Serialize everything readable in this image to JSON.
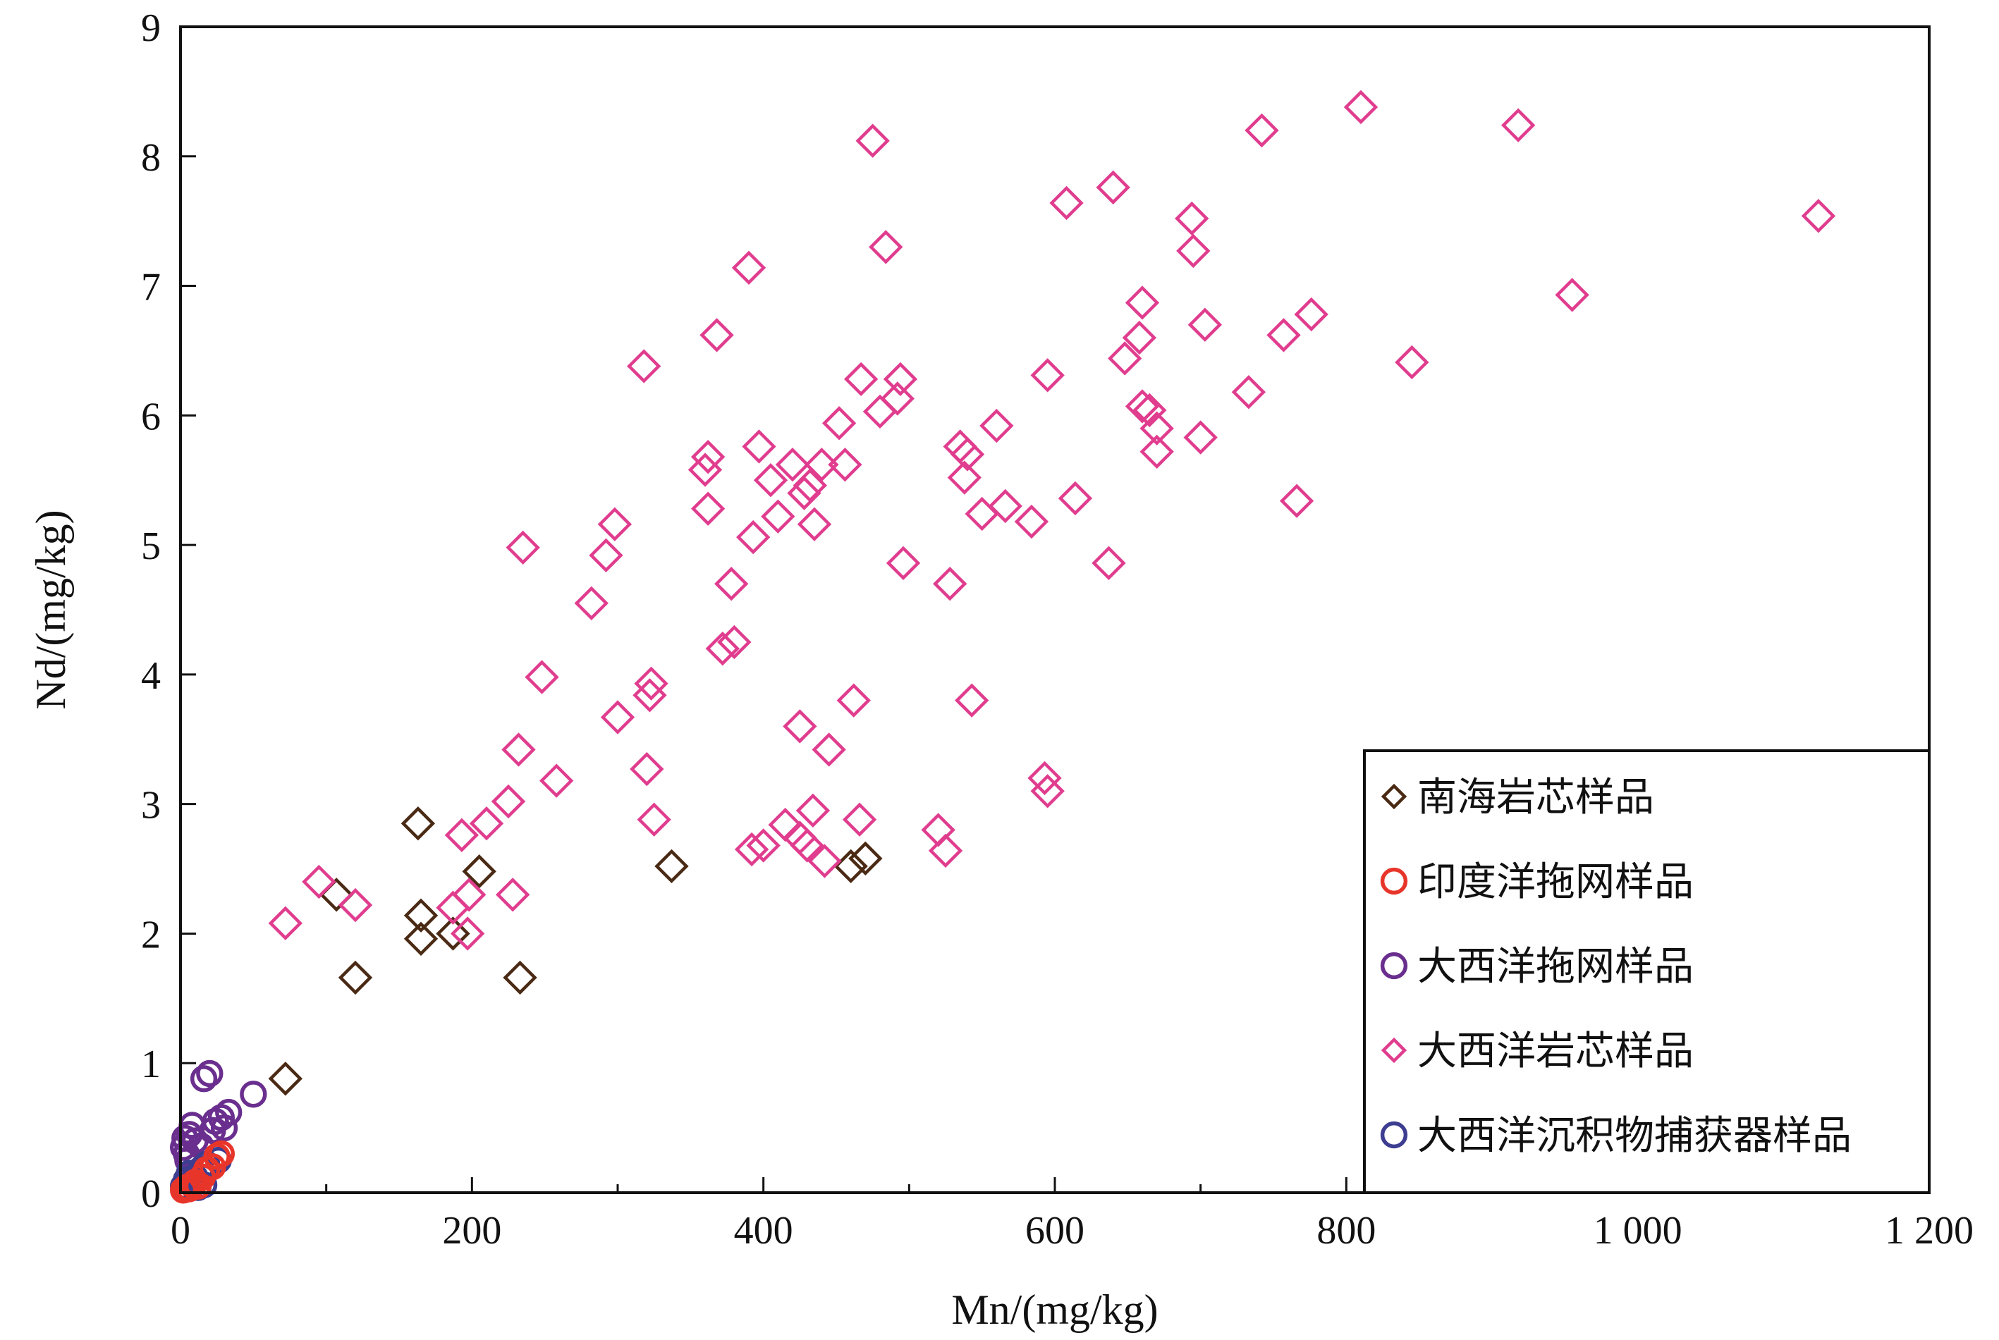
{
  "chart_data": {
    "type": "scatter",
    "title": "",
    "xlabel": "Mn/(mg/kg)",
    "ylabel": "Nd/(mg/kg)",
    "xlim": [
      0,
      1200
    ],
    "ylim": [
      0,
      9
    ],
    "xticks": [
      {
        "value": 0,
        "label": "0"
      },
      {
        "value": 200,
        "label": "200"
      },
      {
        "value": 400,
        "label": "400"
      },
      {
        "value": 600,
        "label": "600"
      },
      {
        "value": 800,
        "label": "800"
      },
      {
        "value": 1000,
        "label": "1 000"
      },
      {
        "value": 1200,
        "label": "1 200"
      }
    ],
    "yticks": [
      {
        "value": 0,
        "label": "0"
      },
      {
        "value": 1,
        "label": "1"
      },
      {
        "value": 2,
        "label": "2"
      },
      {
        "value": 3,
        "label": "3"
      },
      {
        "value": 4,
        "label": "4"
      },
      {
        "value": 5,
        "label": "5"
      },
      {
        "value": 6,
        "label": "6"
      },
      {
        "value": 7,
        "label": "7"
      },
      {
        "value": 8,
        "label": "8"
      },
      {
        "value": 9,
        "label": "9"
      }
    ],
    "grid": false,
    "legend_position": "bottom-right",
    "series": [
      {
        "name": "南海岩芯样品",
        "marker": "diamond",
        "color": "#4a2a14",
        "points": [
          [
            72,
            0.88
          ],
          [
            107,
            2.3
          ],
          [
            120,
            1.66
          ],
          [
            163,
            2.85
          ],
          [
            165,
            2.14
          ],
          [
            165,
            1.96
          ],
          [
            187,
            2.0
          ],
          [
            205,
            2.48
          ],
          [
            233,
            1.66
          ],
          [
            337,
            2.52
          ],
          [
            460,
            2.52
          ],
          [
            470,
            2.58
          ]
        ]
      },
      {
        "name": "印度洋拖网样品",
        "marker": "circle",
        "color": "#e8352a",
        "points": [
          [
            2,
            0.02
          ],
          [
            4,
            0.04
          ],
          [
            6,
            0.03
          ],
          [
            8,
            0.06
          ],
          [
            10,
            0.08
          ],
          [
            12,
            0.05
          ],
          [
            15,
            0.12
          ],
          [
            18,
            0.18
          ],
          [
            22,
            0.2
          ],
          [
            25,
            0.28
          ],
          [
            28,
            0.3
          ]
        ]
      },
      {
        "name": "大西洋拖网样品",
        "marker": "circle",
        "color": "#6a2f8e",
        "points": [
          [
            2,
            0.35
          ],
          [
            3,
            0.42
          ],
          [
            4,
            0.3
          ],
          [
            5,
            0.25
          ],
          [
            6,
            0.45
          ],
          [
            8,
            0.52
          ],
          [
            10,
            0.4
          ],
          [
            14,
            0.36
          ],
          [
            16,
            0.88
          ],
          [
            20,
            0.92
          ],
          [
            22,
            0.48
          ],
          [
            24,
            0.55
          ],
          [
            28,
            0.58
          ],
          [
            30,
            0.5
          ],
          [
            33,
            0.62
          ],
          [
            50,
            0.76
          ]
        ]
      },
      {
        "name": "大西洋岩芯样品",
        "marker": "diamond",
        "color": "#e03d8f",
        "points": [
          [
            72,
            2.08
          ],
          [
            95,
            2.4
          ],
          [
            120,
            2.22
          ],
          [
            187,
            2.2
          ],
          [
            193,
            2.76
          ],
          [
            197,
            2.0
          ],
          [
            198,
            2.3
          ],
          [
            210,
            2.85
          ],
          [
            225,
            3.02
          ],
          [
            228,
            2.3
          ],
          [
            232,
            3.42
          ],
          [
            235,
            4.98
          ],
          [
            248,
            3.98
          ],
          [
            258,
            3.18
          ],
          [
            282,
            4.55
          ],
          [
            292,
            4.92
          ],
          [
            298,
            5.16
          ],
          [
            300,
            3.67
          ],
          [
            318,
            6.38
          ],
          [
            320,
            3.27
          ],
          [
            322,
            3.84
          ],
          [
            323,
            3.93
          ],
          [
            325,
            2.88
          ],
          [
            360,
            5.58
          ],
          [
            362,
            5.68
          ],
          [
            362,
            5.28
          ],
          [
            368,
            6.62
          ],
          [
            372,
            4.2
          ],
          [
            378,
            4.7
          ],
          [
            380,
            4.25
          ],
          [
            390,
            7.14
          ],
          [
            392,
            2.65
          ],
          [
            393,
            5.06
          ],
          [
            397,
            5.76
          ],
          [
            400,
            2.68
          ],
          [
            405,
            5.5
          ],
          [
            410,
            5.22
          ],
          [
            415,
            2.84
          ],
          [
            420,
            5.62
          ],
          [
            425,
            2.74
          ],
          [
            425,
            3.6
          ],
          [
            428,
            5.4
          ],
          [
            430,
            2.68
          ],
          [
            432,
            5.46
          ],
          [
            434,
            2.95
          ],
          [
            435,
            5.16
          ],
          [
            440,
            5.62
          ],
          [
            442,
            2.56
          ],
          [
            445,
            3.42
          ],
          [
            452,
            5.94
          ],
          [
            456,
            5.62
          ],
          [
            462,
            3.8
          ],
          [
            466,
            2.88
          ],
          [
            467,
            6.28
          ],
          [
            475,
            8.12
          ],
          [
            480,
            6.03
          ],
          [
            484,
            7.3
          ],
          [
            492,
            6.13
          ],
          [
            494,
            6.28
          ],
          [
            496,
            4.86
          ],
          [
            520,
            2.8
          ],
          [
            525,
            2.64
          ],
          [
            528,
            4.7
          ],
          [
            535,
            5.76
          ],
          [
            538,
            5.52
          ],
          [
            540,
            5.7
          ],
          [
            543,
            3.8
          ],
          [
            550,
            5.24
          ],
          [
            560,
            5.92
          ],
          [
            566,
            5.3
          ],
          [
            584,
            5.18
          ],
          [
            593,
            3.2
          ],
          [
            595,
            6.31
          ],
          [
            595,
            3.1
          ],
          [
            608,
            7.64
          ],
          [
            614,
            5.36
          ],
          [
            637,
            4.86
          ],
          [
            640,
            7.76
          ],
          [
            648,
            6.44
          ],
          [
            658,
            6.6
          ],
          [
            660,
            6.87
          ],
          [
            660,
            6.07
          ],
          [
            665,
            6.04
          ],
          [
            670,
            5.9
          ],
          [
            670,
            5.72
          ],
          [
            694,
            7.52
          ],
          [
            695,
            7.27
          ],
          [
            700,
            5.83
          ],
          [
            703,
            6.7
          ],
          [
            733,
            6.18
          ],
          [
            742,
            8.2
          ],
          [
            757,
            6.62
          ],
          [
            766,
            5.34
          ],
          [
            776,
            6.78
          ],
          [
            810,
            8.38
          ],
          [
            845,
            6.41
          ],
          [
            918,
            8.24
          ],
          [
            955,
            6.93
          ],
          [
            1124,
            7.54
          ]
        ]
      },
      {
        "name": "大西洋沉积物捕获器样品",
        "marker": "circle",
        "color": "#3d3d91",
        "points": [
          [
            2,
            0.05
          ],
          [
            4,
            0.1
          ],
          [
            6,
            0.15
          ],
          [
            8,
            0.08
          ],
          [
            10,
            0.12
          ],
          [
            12,
            0.04
          ],
          [
            14,
            0.18
          ],
          [
            16,
            0.06
          ],
          [
            18,
            0.22
          ],
          [
            26,
            0.25
          ]
        ]
      }
    ]
  }
}
